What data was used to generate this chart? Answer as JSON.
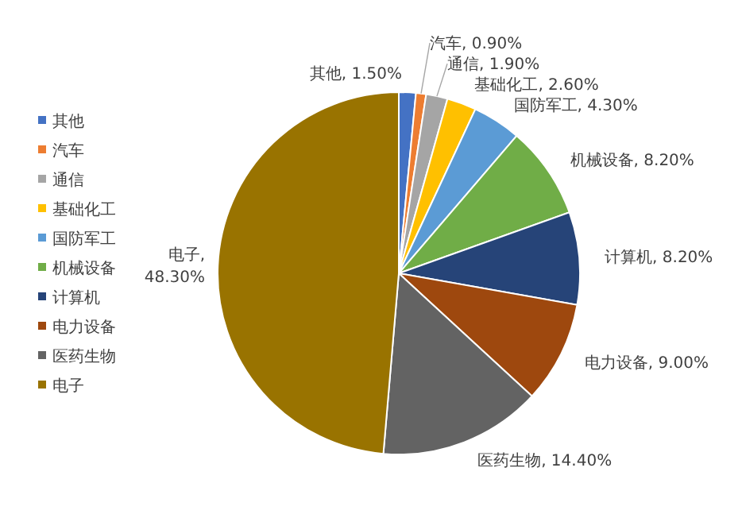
{
  "chart_data": {
    "type": "pie",
    "categories": [
      "其他",
      "汽车",
      "通信",
      "基础化工",
      "国防军工",
      "机械设备",
      "计算机",
      "电力设备",
      "医药生物",
      "电子"
    ],
    "values": [
      1.5,
      0.9,
      1.9,
      2.6,
      4.3,
      8.2,
      8.2,
      9.0,
      14.4,
      48.3
    ],
    "colors": [
      "#4472c4",
      "#ed7d31",
      "#a5a5a5",
      "#ffc000",
      "#5b9bd5",
      "#70ad47",
      "#264478",
      "#9e480e",
      "#636363",
      "#997300"
    ],
    "value_labels": [
      ", 1.50%",
      ", 0.90%",
      ", 1.90%",
      ", 2.60%",
      ", 4.30%",
      ", 8.20%",
      ", 8.20%",
      ", 9.00%",
      ", 14.40%",
      ", 48.30%"
    ],
    "legend": "left"
  }
}
